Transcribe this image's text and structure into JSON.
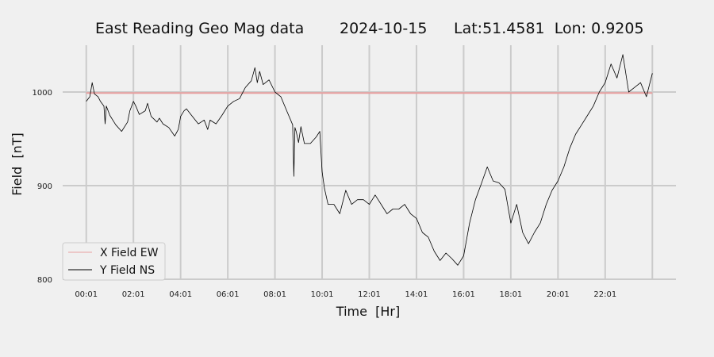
{
  "chart_data": {
    "type": "line",
    "title_parts": [
      "East Reading Geo Mag data",
      "2024-10-15",
      "Lat:51.4581  Lon: 0.9205"
    ],
    "xlabel": "Time  [Hr]",
    "ylabel": "Field  [nT]",
    "x_ticks": [
      "00:01",
      "02:01",
      "04:01",
      "06:01",
      "08:01",
      "10:01",
      "12:01",
      "14:01",
      "16:01",
      "18:01",
      "20:01",
      "22:01"
    ],
    "xlim_hours": [
      -1,
      25
    ],
    "ylim": [
      800,
      1050
    ],
    "y_ticks": [
      800,
      900,
      1000
    ],
    "grid": true,
    "legend_position": "lower-left",
    "colors": {
      "x_field": "#e8a0a0",
      "y_field": "#000000",
      "grid": "#cbcbcb"
    },
    "series": [
      {
        "name": "X Field EW",
        "color": "#e8a0a0",
        "x_hours": [
          0,
          24
        ],
        "values": [
          999,
          999
        ]
      },
      {
        "name": "Y Field NS",
        "color": "#000000",
        "x_hours": [
          0.0,
          0.15,
          0.25,
          0.35,
          0.5,
          0.6,
          0.75,
          0.8,
          0.85,
          1.0,
          1.25,
          1.5,
          1.75,
          1.85,
          2.0,
          2.1,
          2.25,
          2.5,
          2.6,
          2.75,
          3.0,
          3.1,
          3.25,
          3.5,
          3.75,
          3.9,
          4.0,
          4.15,
          4.25,
          4.5,
          4.75,
          5.0,
          5.15,
          5.25,
          5.5,
          5.75,
          6.0,
          6.25,
          6.5,
          6.6,
          6.75,
          7.0,
          7.15,
          7.25,
          7.35,
          7.5,
          7.75,
          8.0,
          8.25,
          8.5,
          8.75,
          8.8,
          8.85,
          8.9,
          9.0,
          9.1,
          9.25,
          9.5,
          9.75,
          9.9,
          10.0,
          10.1,
          10.25,
          10.5,
          10.75,
          11.0,
          11.25,
          11.5,
          11.75,
          12.0,
          12.25,
          12.5,
          12.75,
          13.0,
          13.25,
          13.5,
          13.75,
          14.0,
          14.25,
          14.5,
          14.75,
          15.0,
          15.25,
          15.5,
          15.75,
          16.0,
          16.25,
          16.5,
          16.75,
          17.0,
          17.25,
          17.5,
          17.75,
          18.0,
          18.25,
          18.5,
          18.75,
          19.0,
          19.25,
          19.5,
          19.75,
          20.0,
          20.25,
          20.5,
          20.75,
          21.0,
          21.25,
          21.5,
          21.75,
          22.0,
          22.25,
          22.5,
          22.75,
          23.0,
          23.25,
          23.5,
          23.75,
          24.0
        ],
        "values": [
          990,
          995,
          1010,
          998,
          995,
          990,
          985,
          966,
          985,
          975,
          965,
          958,
          968,
          980,
          990,
          985,
          976,
          980,
          988,
          974,
          968,
          972,
          966,
          962,
          953,
          960,
          974,
          980,
          982,
          974,
          966,
          970,
          960,
          970,
          966,
          975,
          985,
          990,
          993,
          998,
          1005,
          1012,
          1026,
          1010,
          1022,
          1008,
          1013,
          1000,
          995,
          980,
          965,
          910,
          962,
          958,
          946,
          963,
          945,
          945,
          952,
          958,
          915,
          897,
          880,
          880,
          870,
          895,
          880,
          885,
          885,
          880,
          890,
          880,
          870,
          875,
          875,
          880,
          870,
          865,
          850,
          845,
          830,
          820,
          828,
          822,
          815,
          825,
          860,
          885,
          902,
          920,
          905,
          903,
          896,
          860,
          880,
          850,
          838,
          850,
          860,
          880,
          895,
          905,
          920,
          940,
          955,
          965,
          975,
          985,
          1000,
          1010,
          1030,
          1015,
          1040,
          1000,
          1005,
          1010,
          995,
          1020
        ]
      }
    ]
  }
}
